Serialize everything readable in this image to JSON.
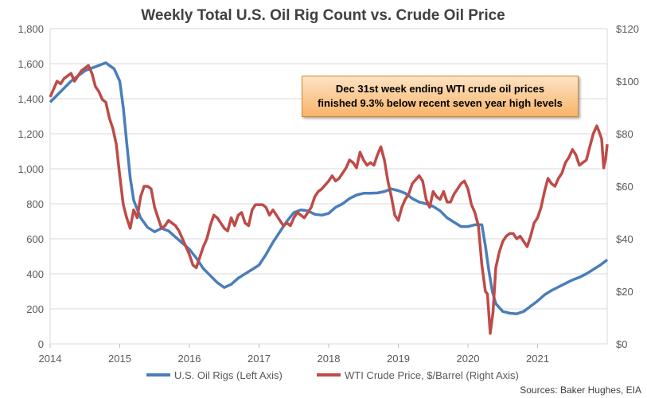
{
  "chart_data": {
    "type": "line",
    "title": "Weekly Total U.S. Oil Rig Count vs. Crude Oil Price",
    "xlim": [
      2014,
      2022
    ],
    "x_ticks": [
      "2014",
      "2015",
      "2016",
      "2017",
      "2018",
      "2019",
      "2020",
      "2021"
    ],
    "y_left": {
      "ylim": [
        0,
        1800
      ],
      "ticks": [
        "0",
        "200",
        "400",
        "600",
        "800",
        "1,000",
        "1,200",
        "1,400",
        "1,600",
        "1,800"
      ]
    },
    "y_right": {
      "ylim": [
        0,
        120
      ],
      "ticks": [
        "$0",
        "$20",
        "$40",
        "$60",
        "$80",
        "$100",
        "$120"
      ]
    },
    "grid": "horizontal",
    "legend_position": "bottom",
    "series": [
      {
        "name": "U.S. Oil Rigs (Left Axis)",
        "axis": "left",
        "color": "#4a7ebb",
        "points": [
          [
            2014.0,
            1380
          ],
          [
            2014.1,
            1420
          ],
          [
            2014.2,
            1460
          ],
          [
            2014.3,
            1500
          ],
          [
            2014.4,
            1530
          ],
          [
            2014.5,
            1560
          ],
          [
            2014.6,
            1575
          ],
          [
            2014.7,
            1590
          ],
          [
            2014.8,
            1605
          ],
          [
            2014.85,
            1590
          ],
          [
            2014.92,
            1570
          ],
          [
            2015.0,
            1500
          ],
          [
            2015.05,
            1350
          ],
          [
            2015.1,
            1150
          ],
          [
            2015.15,
            950
          ],
          [
            2015.2,
            820
          ],
          [
            2015.3,
            720
          ],
          [
            2015.4,
            665
          ],
          [
            2015.5,
            640
          ],
          [
            2015.6,
            660
          ],
          [
            2015.7,
            645
          ],
          [
            2015.8,
            610
          ],
          [
            2015.9,
            575
          ],
          [
            2016.0,
            540
          ],
          [
            2016.1,
            490
          ],
          [
            2016.2,
            430
          ],
          [
            2016.3,
            390
          ],
          [
            2016.4,
            350
          ],
          [
            2016.5,
            322
          ],
          [
            2016.6,
            340
          ],
          [
            2016.7,
            375
          ],
          [
            2016.8,
            400
          ],
          [
            2016.9,
            425
          ],
          [
            2017.0,
            450
          ],
          [
            2017.1,
            510
          ],
          [
            2017.2,
            580
          ],
          [
            2017.3,
            640
          ],
          [
            2017.4,
            700
          ],
          [
            2017.5,
            750
          ],
          [
            2017.6,
            765
          ],
          [
            2017.7,
            760
          ],
          [
            2017.8,
            740
          ],
          [
            2017.9,
            735
          ],
          [
            2018.0,
            745
          ],
          [
            2018.1,
            780
          ],
          [
            2018.2,
            800
          ],
          [
            2018.3,
            830
          ],
          [
            2018.4,
            850
          ],
          [
            2018.5,
            860
          ],
          [
            2018.6,
            860
          ],
          [
            2018.7,
            862
          ],
          [
            2018.8,
            870
          ],
          [
            2018.9,
            885
          ],
          [
            2019.0,
            875
          ],
          [
            2019.1,
            860
          ],
          [
            2019.2,
            830
          ],
          [
            2019.3,
            810
          ],
          [
            2019.4,
            800
          ],
          [
            2019.5,
            785
          ],
          [
            2019.6,
            760
          ],
          [
            2019.7,
            720
          ],
          [
            2019.8,
            695
          ],
          [
            2019.9,
            670
          ],
          [
            2020.0,
            670
          ],
          [
            2020.1,
            680
          ],
          [
            2020.2,
            680
          ],
          [
            2020.25,
            560
          ],
          [
            2020.3,
            420
          ],
          [
            2020.35,
            300
          ],
          [
            2020.4,
            230
          ],
          [
            2020.5,
            185
          ],
          [
            2020.6,
            175
          ],
          [
            2020.7,
            172
          ],
          [
            2020.8,
            185
          ],
          [
            2020.9,
            215
          ],
          [
            2021.0,
            245
          ],
          [
            2021.1,
            280
          ],
          [
            2021.2,
            305
          ],
          [
            2021.3,
            325
          ],
          [
            2021.4,
            345
          ],
          [
            2021.5,
            365
          ],
          [
            2021.6,
            380
          ],
          [
            2021.7,
            400
          ],
          [
            2021.8,
            425
          ],
          [
            2021.9,
            450
          ],
          [
            2022.0,
            480
          ]
        ]
      },
      {
        "name": "WTI Crude Price, $/Barrel (Right Axis)",
        "axis": "right",
        "color": "#be4b48",
        "points": [
          [
            2014.0,
            94
          ],
          [
            2014.05,
            97
          ],
          [
            2014.1,
            100
          ],
          [
            2014.15,
            99
          ],
          [
            2014.2,
            101
          ],
          [
            2014.3,
            103
          ],
          [
            2014.35,
            100
          ],
          [
            2014.4,
            102
          ],
          [
            2014.45,
            104
          ],
          [
            2014.5,
            105
          ],
          [
            2014.55,
            106
          ],
          [
            2014.6,
            103
          ],
          [
            2014.65,
            98
          ],
          [
            2014.7,
            96
          ],
          [
            2014.75,
            93
          ],
          [
            2014.8,
            92
          ],
          [
            2014.85,
            86
          ],
          [
            2014.9,
            82
          ],
          [
            2014.95,
            76
          ],
          [
            2015.0,
            64
          ],
          [
            2015.05,
            53
          ],
          [
            2015.1,
            48
          ],
          [
            2015.15,
            44
          ],
          [
            2015.2,
            51
          ],
          [
            2015.25,
            48
          ],
          [
            2015.3,
            56
          ],
          [
            2015.35,
            60
          ],
          [
            2015.4,
            60
          ],
          [
            2015.45,
            59
          ],
          [
            2015.5,
            52
          ],
          [
            2015.55,
            48
          ],
          [
            2015.6,
            44
          ],
          [
            2015.65,
            45
          ],
          [
            2015.7,
            47
          ],
          [
            2015.75,
            46
          ],
          [
            2015.8,
            45
          ],
          [
            2015.85,
            43
          ],
          [
            2015.9,
            40
          ],
          [
            2015.95,
            37
          ],
          [
            2016.0,
            34
          ],
          [
            2016.05,
            30
          ],
          [
            2016.1,
            29
          ],
          [
            2016.15,
            33
          ],
          [
            2016.2,
            37
          ],
          [
            2016.25,
            40
          ],
          [
            2016.3,
            45
          ],
          [
            2016.35,
            49
          ],
          [
            2016.4,
            48
          ],
          [
            2016.45,
            46
          ],
          [
            2016.5,
            44
          ],
          [
            2016.55,
            43
          ],
          [
            2016.6,
            48
          ],
          [
            2016.65,
            45
          ],
          [
            2016.7,
            49
          ],
          [
            2016.75,
            50
          ],
          [
            2016.8,
            46
          ],
          [
            2016.85,
            45
          ],
          [
            2016.9,
            51
          ],
          [
            2016.95,
            53
          ],
          [
            2017.0,
            53
          ],
          [
            2017.05,
            53
          ],
          [
            2017.1,
            52
          ],
          [
            2017.15,
            49
          ],
          [
            2017.2,
            51
          ],
          [
            2017.25,
            49
          ],
          [
            2017.3,
            47
          ],
          [
            2017.35,
            45
          ],
          [
            2017.4,
            46
          ],
          [
            2017.45,
            45
          ],
          [
            2017.5,
            48
          ],
          [
            2017.55,
            50
          ],
          [
            2017.6,
            49
          ],
          [
            2017.65,
            48
          ],
          [
            2017.7,
            50
          ],
          [
            2017.75,
            52
          ],
          [
            2017.8,
            56
          ],
          [
            2017.85,
            58
          ],
          [
            2017.9,
            59
          ],
          [
            2018.0,
            62
          ],
          [
            2018.05,
            64
          ],
          [
            2018.1,
            62
          ],
          [
            2018.15,
            63
          ],
          [
            2018.2,
            65
          ],
          [
            2018.25,
            67
          ],
          [
            2018.3,
            70
          ],
          [
            2018.35,
            69
          ],
          [
            2018.4,
            67
          ],
          [
            2018.45,
            73
          ],
          [
            2018.5,
            70
          ],
          [
            2018.55,
            68
          ],
          [
            2018.6,
            69
          ],
          [
            2018.65,
            68
          ],
          [
            2018.7,
            72
          ],
          [
            2018.75,
            75
          ],
          [
            2018.8,
            70
          ],
          [
            2018.85,
            62
          ],
          [
            2018.9,
            56
          ],
          [
            2018.95,
            49
          ],
          [
            2019.0,
            47
          ],
          [
            2019.05,
            52
          ],
          [
            2019.1,
            55
          ],
          [
            2019.15,
            57
          ],
          [
            2019.2,
            61
          ],
          [
            2019.3,
            64
          ],
          [
            2019.35,
            62
          ],
          [
            2019.4,
            55
          ],
          [
            2019.45,
            52
          ],
          [
            2019.5,
            58
          ],
          [
            2019.55,
            56
          ],
          [
            2019.6,
            55
          ],
          [
            2019.65,
            58
          ],
          [
            2019.7,
            54
          ],
          [
            2019.75,
            54
          ],
          [
            2019.8,
            57
          ],
          [
            2019.85,
            59
          ],
          [
            2019.9,
            61
          ],
          [
            2019.95,
            62
          ],
          [
            2020.0,
            59
          ],
          [
            2020.05,
            53
          ],
          [
            2020.1,
            50
          ],
          [
            2020.15,
            45
          ],
          [
            2020.2,
            30
          ],
          [
            2020.25,
            20
          ],
          [
            2020.28,
            19
          ],
          [
            2020.32,
            4
          ],
          [
            2020.36,
            12
          ],
          [
            2020.4,
            29
          ],
          [
            2020.45,
            35
          ],
          [
            2020.5,
            39
          ],
          [
            2020.55,
            41
          ],
          [
            2020.6,
            42
          ],
          [
            2020.65,
            42
          ],
          [
            2020.7,
            40
          ],
          [
            2020.75,
            41
          ],
          [
            2020.8,
            39
          ],
          [
            2020.85,
            37
          ],
          [
            2020.9,
            41
          ],
          [
            2020.95,
            46
          ],
          [
            2021.0,
            48
          ],
          [
            2021.05,
            52
          ],
          [
            2021.1,
            58
          ],
          [
            2021.15,
            63
          ],
          [
            2021.2,
            61
          ],
          [
            2021.25,
            60
          ],
          [
            2021.3,
            63
          ],
          [
            2021.35,
            65
          ],
          [
            2021.4,
            69
          ],
          [
            2021.45,
            71
          ],
          [
            2021.5,
            74
          ],
          [
            2021.55,
            72
          ],
          [
            2021.6,
            68
          ],
          [
            2021.65,
            69
          ],
          [
            2021.7,
            70
          ],
          [
            2021.75,
            75
          ],
          [
            2021.8,
            80
          ],
          [
            2021.85,
            83
          ],
          [
            2021.88,
            81
          ],
          [
            2021.92,
            78
          ],
          [
            2021.95,
            67
          ],
          [
            2021.98,
            71
          ],
          [
            2022.0,
            76
          ]
        ]
      }
    ]
  },
  "annotation": {
    "line1": "Dec 31st week ending WTI crude oil prices",
    "line2": "finished 9.3% below recent seven year high levels"
  },
  "legend": {
    "rigs": "U.S. Oil Rigs (Left Axis)",
    "wti": "WTI Crude Price, $/Barrel (Right Axis)"
  },
  "source": "Sources: Baker Hughes, EIA"
}
